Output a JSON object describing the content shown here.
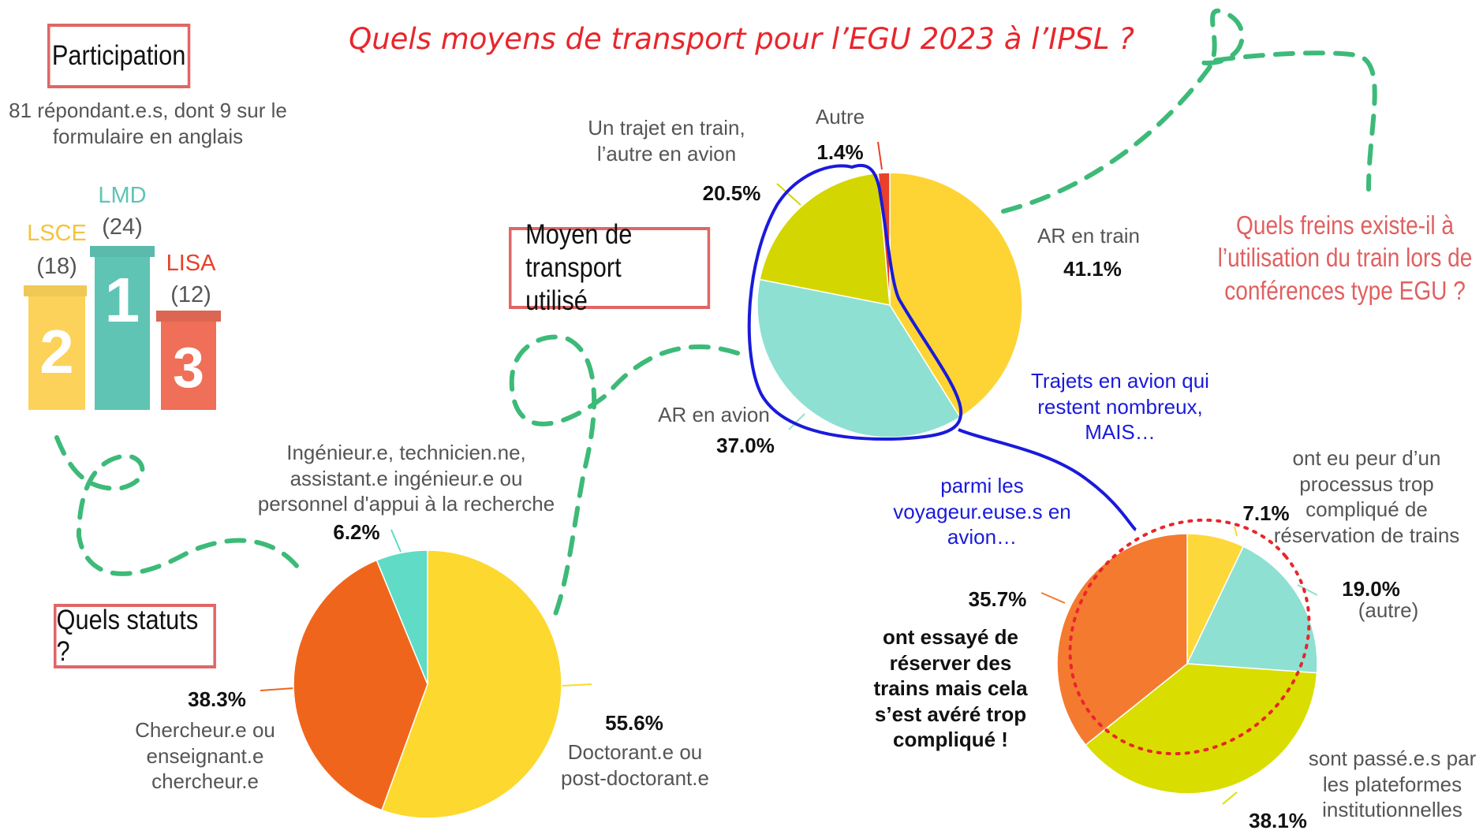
{
  "title": "Quels moyens de transport pour l’EGU 2023 à l’IPSL ?",
  "colors": {
    "title_red": "#e8262c",
    "box_border": "#e06666",
    "dashed_green": "#3dba78",
    "annotation_blue": "#1a1adb",
    "yellow": "#fdd434",
    "yellow_green": "#d3d600",
    "mint": "#8ee0d2",
    "orange": "#f26a1b",
    "orange_light": "#f47a30",
    "red": "#e8402a"
  },
  "participation": {
    "box_label": "Participation",
    "respondents_line1": "81 répondant.e.s, dont 9 sur le",
    "respondents_line2": "formulaire en anglais",
    "podium": [
      {
        "name": "LSCE",
        "count": "(18)",
        "rank": "2",
        "color": "#fdd25a"
      },
      {
        "name": "LMD",
        "count": "(24)",
        "rank": "1",
        "color": "#5fc4b4"
      },
      {
        "name": "LISA",
        "count": "(12)",
        "rank": "3",
        "color": "#ef6f58"
      }
    ]
  },
  "statuts": {
    "box_label": "Quels statuts ?"
  },
  "transport": {
    "box_line1": "Moyen de transport",
    "box_line2": "utilisé"
  },
  "freins": {
    "line1": "Quels freins existe-il à",
    "line2": "l’utilisation du train lors de",
    "line3": "conférences type EGU ?"
  },
  "annotations": {
    "blue1_line1": "Trajets en avion qui",
    "blue1_line2": "restent nombreux,",
    "blue1_line3": "MAIS…",
    "blue2_line1": "parmi les",
    "blue2_line2": "voyageur.euse.s en",
    "blue2_line3": "avion…"
  },
  "chart_data": [
    {
      "type": "pie",
      "title": "Moyen de transport utilisé",
      "slices": [
        {
          "label_lines": [
            "AR en train"
          ],
          "value": 41.1,
          "value_label": "41.1%",
          "color": "#fdd434"
        },
        {
          "label_lines": [
            "AR en avion"
          ],
          "value": 37.0,
          "value_label": "37.0%",
          "color": "#8ee0d2"
        },
        {
          "label_lines": [
            "Un trajet en train,",
            "l’autre en avion"
          ],
          "value": 20.5,
          "value_label": "20.5%",
          "color": "#d3d600"
        },
        {
          "label_lines": [
            "Autre"
          ],
          "value": 1.4,
          "value_label": "1.4%",
          "color": "#e8402a"
        }
      ]
    },
    {
      "type": "pie",
      "title": "Quels statuts ?",
      "slices": [
        {
          "label_lines": [
            "Doctorant.e ou",
            "post-doctorant.e"
          ],
          "value": 55.6,
          "value_label": "55.6%",
          "color": "#fdd82e"
        },
        {
          "label_lines": [
            "Chercheur.e ou",
            "enseignant.e",
            "chercheur.e"
          ],
          "value": 38.3,
          "value_label": "38.3%",
          "color": "#f0651c"
        },
        {
          "label_lines": [
            "Ingénieur.e, technicien.ne,",
            "assistant.e ingénieur.e ou",
            "personnel d'appui à la recherche"
          ],
          "value": 6.2,
          "value_label": "6.2%",
          "color": "#5fdbc6"
        }
      ]
    },
    {
      "type": "pie",
      "title": "",
      "slices": [
        {
          "label_lines": [
            "ont eu peur d’un",
            "processus trop",
            "compliqué de",
            "réservation de trains"
          ],
          "value": 7.1,
          "value_label": "7.1%",
          "color": "#fdd83a"
        },
        {
          "label_lines": [
            "(autre)"
          ],
          "value": 19.0,
          "value_label": "19.0%",
          "color": "#8ee0d2"
        },
        {
          "label_lines": [
            "sont passé.e.s par",
            "les plateformes",
            "institutionnelles"
          ],
          "value": 38.1,
          "value_label": "38.1%",
          "color": "#d9de00"
        },
        {
          "label_lines": [
            "ont essayé de",
            "réserver des",
            "trains mais cela",
            "s’est avéré trop",
            "compliqué !"
          ],
          "value": 35.7,
          "value_label": "35.7%",
          "color": "#f47a30"
        }
      ]
    }
  ]
}
